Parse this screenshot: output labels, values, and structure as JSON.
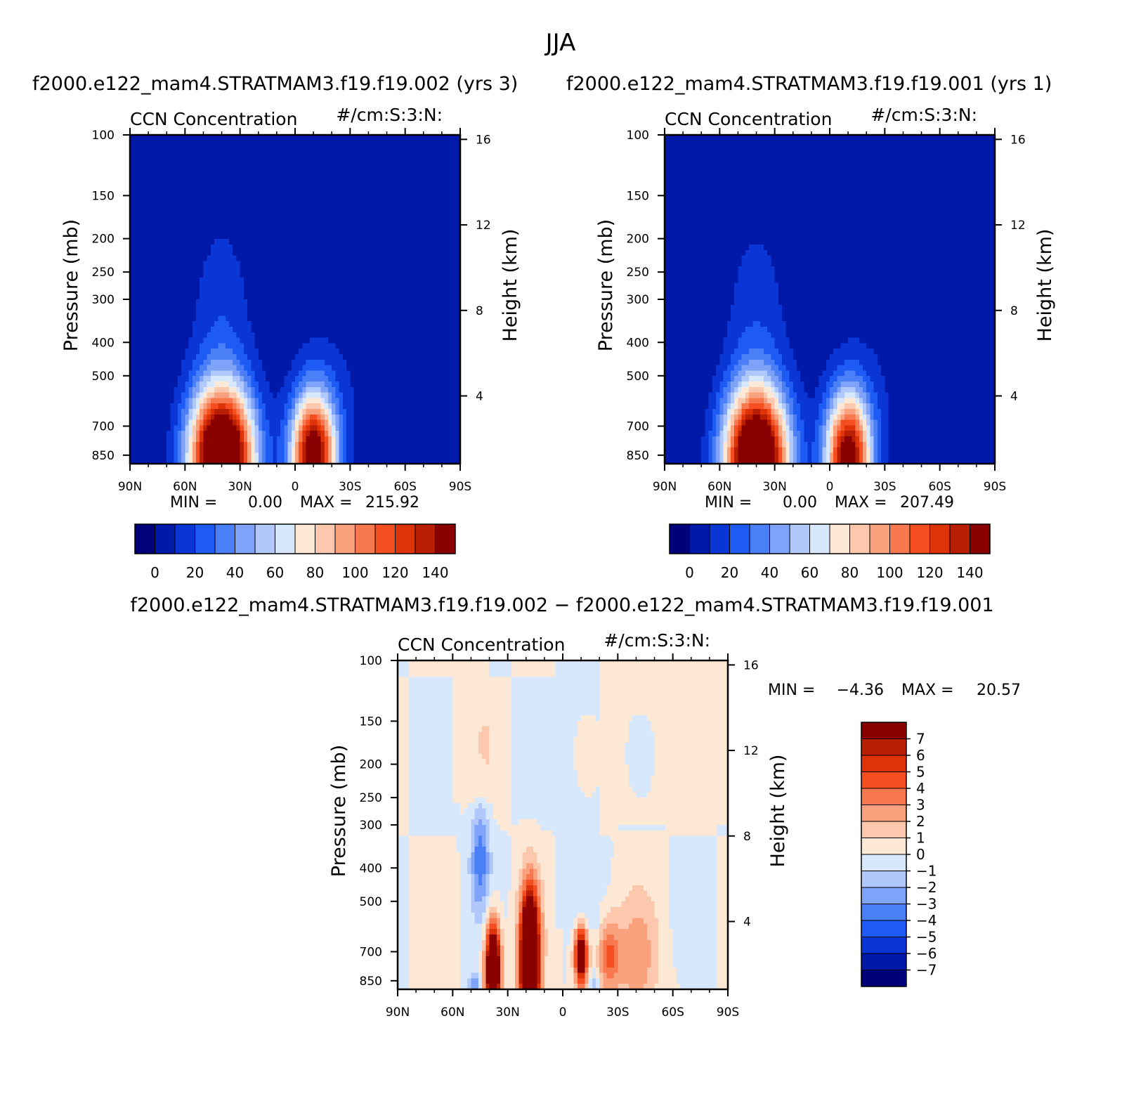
{
  "figure": {
    "title": "JJA"
  },
  "chart_data": [
    {
      "type": "contour",
      "panel": "top-left",
      "run_title": "f2000.e122_mam4.STRATMAM3.f19.f19.002 (yrs 3)",
      "variable": "CCN Concentration",
      "units": "#/cm:S:3:N:",
      "ylabel": "Pressure (mb)",
      "ylabel_right": "Height (km)",
      "pressure_ticks": [
        "100",
        "150",
        "200",
        "250",
        "300",
        "400",
        "500",
        "700",
        "850"
      ],
      "height_ticks": [
        "16",
        "12",
        "8",
        "4"
      ],
      "lat_ticks": [
        "90N",
        "60N",
        "30N",
        "0",
        "30S",
        "60S",
        "90S"
      ],
      "min_label": "MIN =",
      "min_value": "0.00",
      "max_label": "MAX =",
      "max_value": "215.92",
      "colorbar_labels": [
        "0",
        "20",
        "40",
        "60",
        "80",
        "100",
        "120",
        "140"
      ],
      "levels": [
        0,
        10,
        20,
        30,
        40,
        50,
        60,
        70,
        80,
        90,
        100,
        110,
        120,
        130,
        140
      ],
      "xlim": [
        90,
        -90
      ],
      "plim": [
        100,
        900
      ]
    },
    {
      "type": "contour",
      "panel": "top-right",
      "run_title": "f2000.e122_mam4.STRATMAM3.f19.f19.001 (yrs 1)",
      "variable": "CCN Concentration",
      "units": "#/cm:S:3:N:",
      "ylabel": "Pressure (mb)",
      "ylabel_right": "Height (km)",
      "pressure_ticks": [
        "100",
        "150",
        "200",
        "250",
        "300",
        "400",
        "500",
        "700",
        "850"
      ],
      "height_ticks": [
        "16",
        "12",
        "8",
        "4"
      ],
      "lat_ticks": [
        "90N",
        "60N",
        "30N",
        "0",
        "30S",
        "60S",
        "90S"
      ],
      "min_label": "MIN =",
      "min_value": "0.00",
      "max_label": "MAX =",
      "max_value": "207.49",
      "colorbar_labels": [
        "0",
        "20",
        "40",
        "60",
        "80",
        "100",
        "120",
        "140"
      ],
      "levels": [
        0,
        10,
        20,
        30,
        40,
        50,
        60,
        70,
        80,
        90,
        100,
        110,
        120,
        130,
        140
      ],
      "xlim": [
        90,
        -90
      ],
      "plim": [
        100,
        900
      ]
    },
    {
      "type": "contour",
      "panel": "bottom-difference",
      "run_title": "f2000.e122_mam4.STRATMAM3.f19.f19.002 − f2000.e122_mam4.STRATMAM3.f19.f19.001",
      "variable": "CCN Concentration",
      "units": "#/cm:S:3:N:",
      "ylabel": "Pressure (mb)",
      "ylabel_right": "Height (km)",
      "pressure_ticks": [
        "100",
        "150",
        "200",
        "250",
        "300",
        "400",
        "500",
        "700",
        "850"
      ],
      "height_ticks": [
        "16",
        "12",
        "8",
        "4"
      ],
      "lat_ticks": [
        "90N",
        "60N",
        "30N",
        "0",
        "30S",
        "60S",
        "90S"
      ],
      "min_label": "MIN =",
      "min_value": "−4.36",
      "max_label": "MAX =",
      "max_value": "20.57",
      "colorbar_labels": [
        "7",
        "6",
        "5",
        "4",
        "3",
        "2",
        "1",
        "0",
        "−1",
        "−2",
        "−3",
        "−4",
        "−5",
        "−6",
        "−7"
      ],
      "levels": [
        -7,
        -6,
        -5,
        -4,
        -3,
        -2,
        -1,
        0,
        1,
        2,
        3,
        4,
        5,
        6,
        7
      ],
      "xlim": [
        90,
        -90
      ],
      "plim": [
        100,
        900
      ]
    }
  ],
  "palette": [
    "#00007a",
    "#0019a8",
    "#0a36d6",
    "#1e5bf5",
    "#4a7ff8",
    "#7ea3f9",
    "#b0c8fb",
    "#d7e7fc",
    "#fde8d6",
    "#fcc8ad",
    "#f9a07c",
    "#f8784f",
    "#f54f21",
    "#de3308",
    "#b81e02",
    "#8a0000"
  ]
}
